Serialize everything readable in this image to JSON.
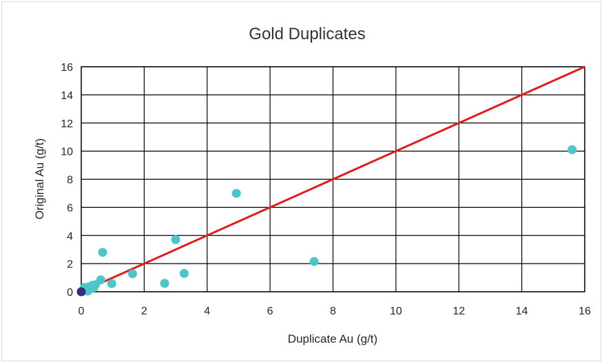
{
  "chart_data": {
    "type": "scatter",
    "title": "Gold Duplicates",
    "xlabel": "Duplicate Au (g/t)",
    "ylabel": "Original Au (g/t)",
    "xlim": [
      0,
      16
    ],
    "ylim": [
      0,
      16
    ],
    "x_ticks": [
      "0",
      "2",
      "4",
      "6",
      "8",
      "10",
      "12",
      "14",
      "16"
    ],
    "y_ticks": [
      "0",
      "2",
      "4",
      "6",
      "8",
      "10",
      "12",
      "14",
      "16"
    ],
    "grid": true,
    "legend": "none",
    "series": [
      {
        "color": "#4bc6cb",
        "points": [
          {
            "x": 0.02,
            "y": 0.02
          },
          {
            "x": 0.05,
            "y": 0.1
          },
          {
            "x": 0.1,
            "y": 0.3
          },
          {
            "x": 0.15,
            "y": 0.15
          },
          {
            "x": 0.2,
            "y": 0.05
          },
          {
            "x": 0.25,
            "y": 0.35
          },
          {
            "x": 0.3,
            "y": 0.2
          },
          {
            "x": 0.35,
            "y": 0.45
          },
          {
            "x": 0.4,
            "y": 0.3
          },
          {
            "x": 0.45,
            "y": 0.5
          },
          {
            "x": 0.62,
            "y": 0.85
          },
          {
            "x": 0.68,
            "y": 2.8
          },
          {
            "x": 0.97,
            "y": 0.58
          },
          {
            "x": 1.63,
            "y": 1.28
          },
          {
            "x": 2.65,
            "y": 0.6
          },
          {
            "x": 3.0,
            "y": 3.7
          },
          {
            "x": 3.27,
            "y": 1.3
          },
          {
            "x": 4.93,
            "y": 7.0
          },
          {
            "x": 7.4,
            "y": 2.15
          },
          {
            "x": 15.6,
            "y": 10.1
          }
        ]
      },
      {
        "color": "#3b2a7a",
        "points": [
          {
            "x": 0.0,
            "y": 0.0
          }
        ]
      }
    ],
    "reference_line": {
      "from": [
        0,
        0
      ],
      "to": [
        16,
        16
      ],
      "color": "#e31a1c"
    }
  }
}
